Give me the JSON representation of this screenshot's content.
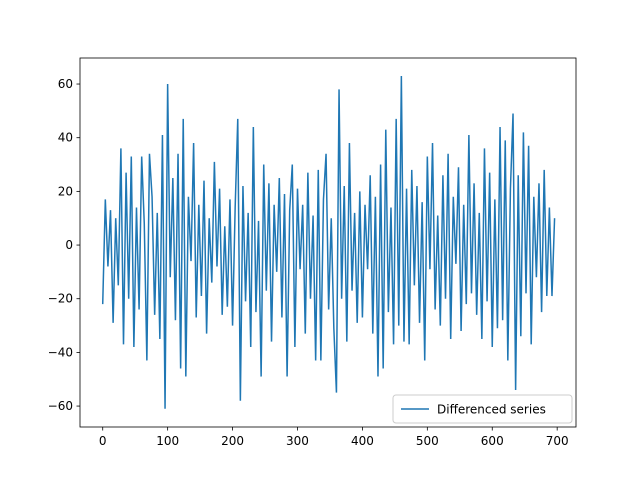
{
  "chart_data": {
    "type": "line",
    "x": [
      0,
      4,
      8,
      12,
      16,
      20,
      24,
      28,
      32,
      36,
      40,
      44,
      48,
      52,
      56,
      60,
      64,
      68,
      72,
      76,
      80,
      84,
      88,
      92,
      96,
      100,
      104,
      108,
      112,
      116,
      120,
      124,
      128,
      132,
      136,
      140,
      144,
      148,
      152,
      156,
      160,
      164,
      168,
      172,
      176,
      180,
      184,
      188,
      192,
      196,
      200,
      204,
      208,
      212,
      216,
      220,
      224,
      228,
      232,
      236,
      240,
      244,
      248,
      252,
      256,
      260,
      264,
      268,
      272,
      276,
      280,
      284,
      288,
      292,
      296,
      300,
      304,
      308,
      312,
      316,
      320,
      324,
      328,
      332,
      336,
      340,
      344,
      348,
      352,
      356,
      360,
      364,
      368,
      372,
      376,
      380,
      384,
      388,
      392,
      396,
      400,
      404,
      408,
      412,
      416,
      420,
      424,
      428,
      432,
      436,
      440,
      444,
      448,
      452,
      456,
      460,
      464,
      468,
      472,
      476,
      480,
      484,
      488,
      492,
      496,
      500,
      504,
      508,
      512,
      516,
      520,
      524,
      528,
      532,
      536,
      540,
      544,
      548,
      552,
      556,
      560,
      564,
      568,
      572,
      576,
      580,
      584,
      588,
      592,
      596,
      600,
      604,
      608,
      612,
      616,
      620,
      624,
      628,
      632,
      636,
      640,
      644,
      648,
      652,
      656,
      660,
      664,
      668,
      672,
      676,
      680,
      684,
      688,
      692,
      696
    ],
    "series": [
      {
        "name": "Differenced series",
        "color": "#1f77b4",
        "values": [
          -22,
          17,
          -8,
          13,
          -29,
          10,
          -15,
          36,
          -37,
          27,
          -20,
          33,
          -38,
          14,
          -24,
          33,
          8,
          -43,
          34,
          18,
          -26,
          12,
          -35,
          41,
          -61,
          60,
          -12,
          25,
          -28,
          34,
          -46,
          47,
          -49,
          18,
          -6,
          38,
          -27,
          15,
          -19,
          24,
          -33,
          10,
          -14,
          31,
          -8,
          21,
          -26,
          7,
          -23,
          17,
          -30,
          14,
          47,
          -58,
          22,
          -21,
          12,
          -38,
          44,
          -25,
          9,
          -49,
          30,
          -17,
          23,
          -36,
          15,
          -10,
          25,
          -27,
          19,
          -49,
          13,
          30,
          -38,
          21,
          -9,
          15,
          -33,
          27,
          -20,
          11,
          -43,
          28,
          -43,
          17,
          34,
          -24,
          10,
          -31,
          -55,
          58,
          -20,
          22,
          -36,
          38,
          -17,
          12,
          -29,
          20,
          -27,
          15,
          -9,
          26,
          -33,
          18,
          -49,
          30,
          -46,
          43,
          -25,
          14,
          -37,
          47,
          -30,
          63,
          -36,
          21,
          -37,
          28,
          -15,
          22,
          -29,
          16,
          -43,
          33,
          -9,
          38,
          -24,
          11,
          -30,
          26,
          -20,
          34,
          -35,
          18,
          -7,
          29,
          -32,
          15,
          -22,
          41,
          -18,
          23,
          -26,
          12,
          -35,
          36,
          -21,
          27,
          -38,
          17,
          -31,
          44,
          -28,
          39,
          -43,
          21,
          49,
          -54,
          26,
          -34,
          42,
          -18,
          37,
          -37,
          18,
          -12,
          23,
          -25,
          28,
          -19,
          14,
          -19,
          10
        ]
      }
    ],
    "xlim": [
      -35,
      729
    ],
    "ylim": [
      -67.8,
      69.7
    ],
    "xticks": [
      0,
      100,
      200,
      300,
      400,
      500,
      600,
      700
    ],
    "yticks": [
      {
        "value": -60,
        "label": "−60"
      },
      {
        "value": -40,
        "label": "−40"
      },
      {
        "value": -20,
        "label": "−20"
      },
      0,
      20,
      40,
      60
    ],
    "legend": "lower right"
  }
}
